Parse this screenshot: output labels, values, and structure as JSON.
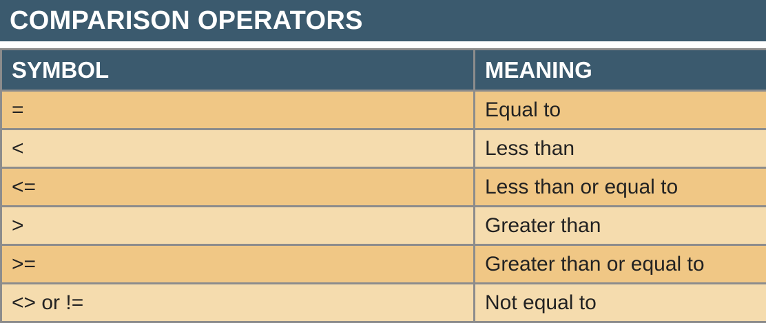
{
  "title": "COMPARISON OPERATORS",
  "headers": {
    "symbol": "SYMBOL",
    "meaning": "MEANING"
  },
  "rows": [
    {
      "symbol": "=",
      "meaning": "Equal to"
    },
    {
      "symbol": "<",
      "meaning": "Less than"
    },
    {
      "symbol": "<=",
      "meaning": "Less than or equal to"
    },
    {
      "symbol": ">",
      "meaning": "Greater than"
    },
    {
      "symbol": ">=",
      "meaning": "Greater than or equal to"
    },
    {
      "symbol": "<> or !=",
      "meaning": "Not equal to"
    }
  ],
  "colors": {
    "header": "#3b5a6e",
    "row_dark": "#f0c785",
    "row_light": "#f5dcae",
    "border": "#8c8c8c"
  }
}
